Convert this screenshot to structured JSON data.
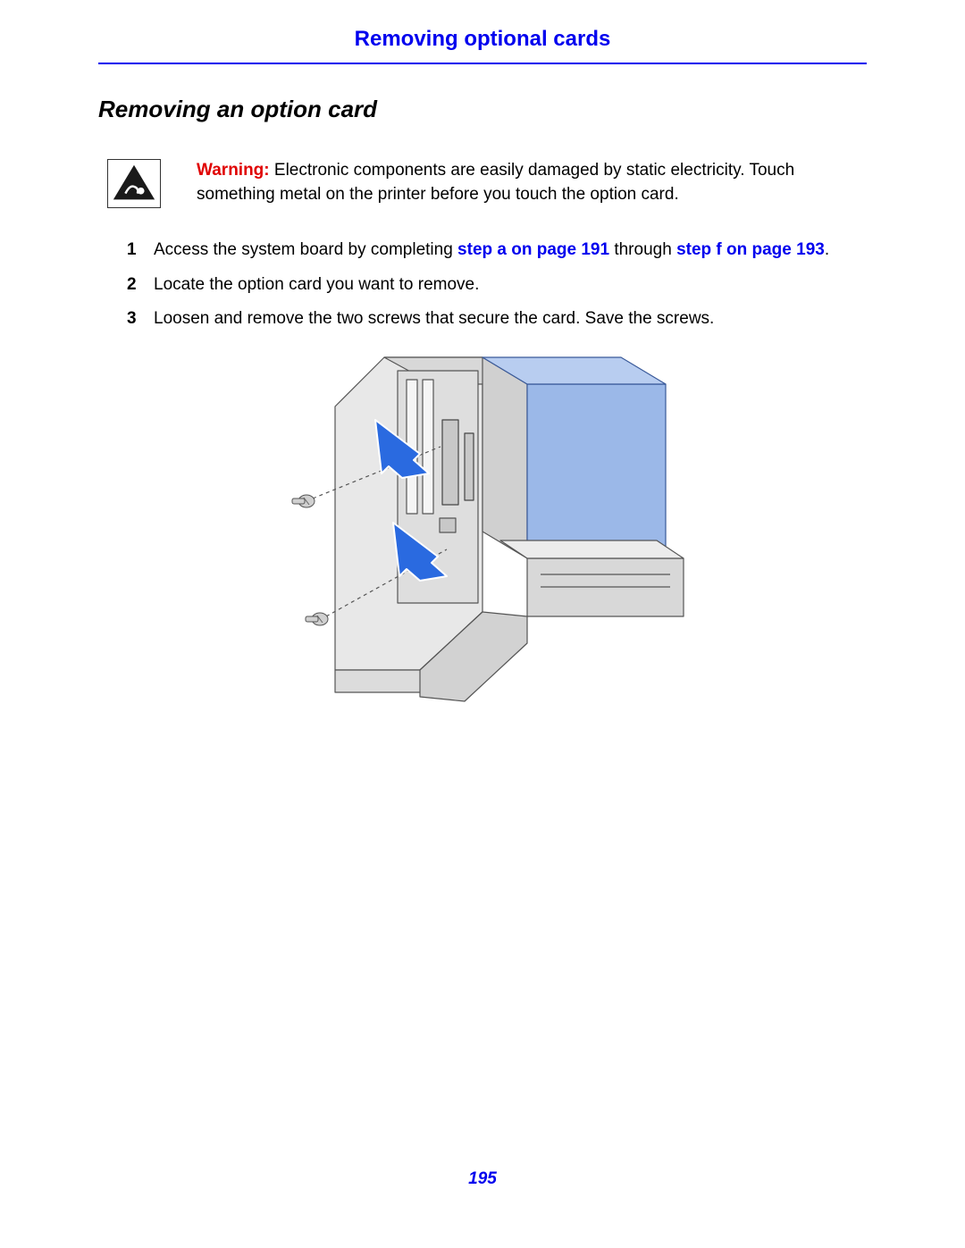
{
  "header": {
    "title": "Removing optional cards"
  },
  "section": {
    "title": "Removing an option card"
  },
  "warning": {
    "label": "Warning:",
    "text_before": " Electronic components are easily damaged by static electricity. Touch something metal on the printer before you touch the option card."
  },
  "steps": [
    {
      "n": "1",
      "parts": [
        {
          "t": "Access the system board by completing "
        },
        {
          "t": "step a on page 191",
          "link": true
        },
        {
          "t": " through "
        },
        {
          "t": "step f on page 193",
          "link": true
        },
        {
          "t": "."
        }
      ]
    },
    {
      "n": "2",
      "parts": [
        {
          "t": "Locate the option card you want to remove."
        }
      ]
    },
    {
      "n": "3",
      "parts": [
        {
          "t": "Loosen and remove the two screws that secure the card. Save the screws."
        }
      ]
    }
  ],
  "pageNumber": "195",
  "colors": {
    "accent": "#0000ee",
    "warning": "#e00000",
    "diagram_fill": "#e8e8e8",
    "diagram_dark": "#cfcfcf",
    "card_fill": "#9bb8e8",
    "arrow_fill": "#2a6ae0",
    "arrow_stroke": "#ffffff"
  }
}
